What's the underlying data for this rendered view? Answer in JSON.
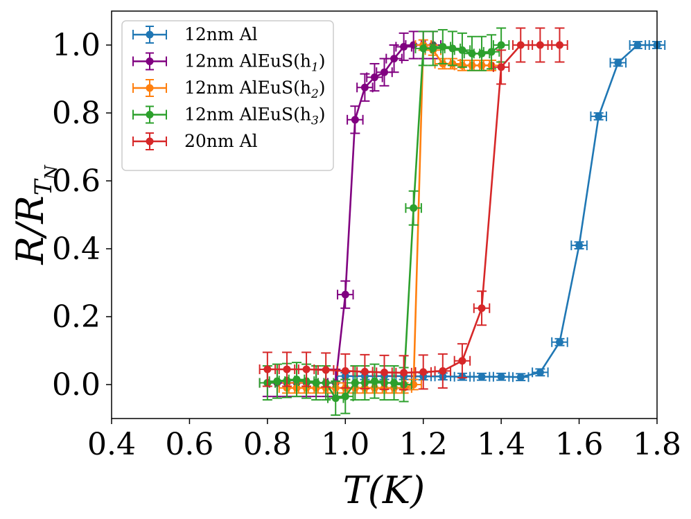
{
  "chart_data": {
    "type": "line",
    "xlabel": "T(K)",
    "ylabel": "R/R_{T_N}",
    "xlim": [
      0.4,
      1.8
    ],
    "ylim": [
      -0.1,
      1.1
    ],
    "xticks": [
      0.4,
      0.6,
      0.8,
      1.0,
      1.2,
      1.4,
      1.6,
      1.8
    ],
    "xtick_labels": [
      "0.4",
      "0.6",
      "0.8",
      "1.0",
      "1.2",
      "1.4",
      "1.6",
      "1.8"
    ],
    "yticks": [
      0.0,
      0.2,
      0.4,
      0.6,
      0.8,
      1.0
    ],
    "ytick_labels": [
      "0.0",
      "0.2",
      "0.4",
      "0.6",
      "0.8",
      "1.0"
    ],
    "grid": false,
    "legend_position": "top-left",
    "series": [
      {
        "name": "12nm Al",
        "label_text": "12nm Al",
        "label_sub": "",
        "color": "#1f77b4",
        "xerr": 0.02,
        "yerr": 0.01,
        "x": [
          1.0,
          1.05,
          1.1,
          1.15,
          1.2,
          1.25,
          1.3,
          1.35,
          1.4,
          1.45,
          1.5,
          1.55,
          1.6,
          1.65,
          1.7,
          1.75,
          1.8
        ],
        "y": [
          0.025,
          0.025,
          0.025,
          0.025,
          0.024,
          0.024,
          0.023,
          0.023,
          0.023,
          0.022,
          0.036,
          0.125,
          0.41,
          0.79,
          0.948,
          1.0,
          1.0
        ]
      },
      {
        "name": "12nm AlEuS(h1)",
        "label_text": "12nm AlEuS(h",
        "label_sub": "1",
        "color": "#800080",
        "xerr": 0.02,
        "yerr": 0.04,
        "x": [
          0.8,
          0.825,
          0.85,
          0.875,
          0.9,
          0.925,
          0.95,
          0.975,
          1.0,
          1.025,
          1.05,
          1.075,
          1.1,
          1.125,
          1.15,
          1.175,
          1.2,
          1.225
        ],
        "y": [
          0.005,
          0.005,
          0.005,
          0.005,
          0.005,
          0.005,
          0.005,
          0.005,
          0.265,
          0.78,
          0.875,
          0.905,
          0.92,
          0.96,
          0.995,
          1.0,
          1.0,
          1.0
        ]
      },
      {
        "name": "12nm AlEuS(h2)",
        "label_text": "12nm AlEuS(h",
        "label_sub": "2",
        "color": "#ff7f0e",
        "xerr": 0.02,
        "yerr": 0.015,
        "x": [
          0.85,
          0.875,
          0.9,
          0.925,
          0.95,
          0.975,
          1.0,
          1.025,
          1.05,
          1.075,
          1.1,
          1.125,
          1.15,
          1.175,
          1.2,
          1.225,
          1.25,
          1.275,
          1.3,
          1.325,
          1.35,
          1.375
        ],
        "y": [
          -0.01,
          -0.01,
          -0.01,
          -0.01,
          -0.01,
          -0.01,
          -0.01,
          -0.01,
          -0.01,
          -0.01,
          -0.01,
          -0.01,
          -0.01,
          0.0,
          1.0,
          0.985,
          0.945,
          0.945,
          0.94,
          0.94,
          0.94,
          0.94
        ]
      },
      {
        "name": "12nm AlEuS(h3)",
        "label_text": "12nm AlEuS(h",
        "label_sub": "3",
        "color": "#2ca02c",
        "xerr": 0.02,
        "yerr": 0.05,
        "x": [
          0.8,
          0.825,
          0.85,
          0.875,
          0.9,
          0.925,
          0.95,
          0.975,
          1.0,
          1.025,
          1.05,
          1.075,
          1.1,
          1.125,
          1.15,
          1.175,
          1.2,
          1.225,
          1.25,
          1.275,
          1.3,
          1.325,
          1.35,
          1.375,
          1.4
        ],
        "y": [
          0.005,
          0.01,
          0.012,
          0.015,
          0.01,
          0.005,
          0.005,
          -0.04,
          -0.035,
          0.005,
          0.005,
          0.01,
          0.005,
          0.005,
          0.0,
          0.52,
          0.99,
          0.99,
          0.995,
          0.99,
          0.985,
          0.975,
          0.975,
          0.98,
          1.0
        ]
      },
      {
        "name": "20nm Al",
        "label_text": "20nm Al",
        "label_sub": "",
        "color": "#d62728",
        "xerr": 0.02,
        "yerr": 0.05,
        "x": [
          0.8,
          0.85,
          0.9,
          0.95,
          1.0,
          1.05,
          1.1,
          1.15,
          1.2,
          1.25,
          1.3,
          1.35,
          1.4,
          1.45,
          1.5,
          1.55
        ],
        "y": [
          0.045,
          0.045,
          0.045,
          0.043,
          0.04,
          0.038,
          0.036,
          0.035,
          0.037,
          0.04,
          0.07,
          0.225,
          0.935,
          1.0,
          1.0,
          1.0
        ]
      }
    ]
  }
}
